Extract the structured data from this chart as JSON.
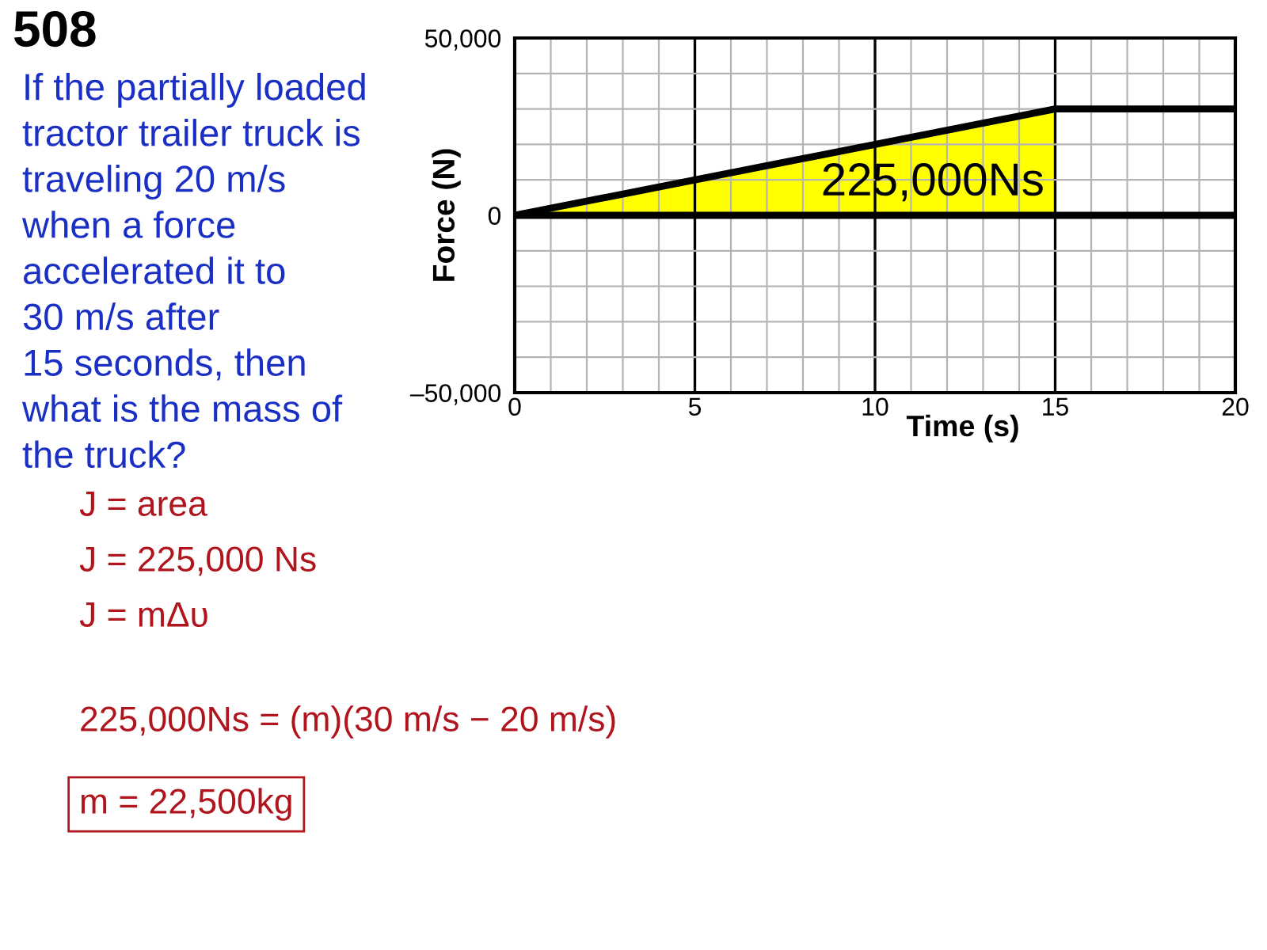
{
  "chart_data": {
    "type": "line",
    "title": "508",
    "xlabel": "Time (s)",
    "ylabel": "Force (N)",
    "xlim": [
      0,
      20
    ],
    "ylim": [
      -50000,
      50000
    ],
    "xticks": [
      0,
      {
        "value": 1,
        "label": null
      },
      {
        "value": 2,
        "label": null
      },
      {
        "value": 3,
        "label": null
      },
      {
        "value": 4,
        "label": null
      },
      5,
      {
        "value": 6,
        "label": null
      },
      {
        "value": 7,
        "label": null
      },
      {
        "value": 8,
        "label": null
      },
      {
        "value": 9,
        "label": null
      },
      10,
      {
        "value": 11,
        "label": null
      },
      {
        "value": 12,
        "label": null
      },
      {
        "value": 13,
        "label": null
      },
      {
        "value": 14,
        "label": null
      },
      15,
      {
        "value": 16,
        "label": null
      },
      {
        "value": 17,
        "label": null
      },
      {
        "value": 18,
        "label": null
      },
      {
        "value": 19,
        "label": null
      },
      20
    ],
    "yticks": [
      {
        "value": -50000,
        "label": "–50,000"
      },
      {
        "value": -40000,
        "label": null
      },
      {
        "value": -30000,
        "label": null
      },
      {
        "value": -20000,
        "label": null
      },
      {
        "value": -10000,
        "label": null
      },
      0,
      {
        "value": 10000,
        "label": null
      },
      {
        "value": 20000,
        "label": null
      },
      {
        "value": 30000,
        "label": null
      },
      {
        "value": 40000,
        "label": null
      },
      {
        "value": 50000,
        "label": "50,000"
      }
    ],
    "grid": true,
    "series": [
      {
        "type": "area",
        "color": "#ffff00",
        "x": [
          0,
          15
        ],
        "values": [
          0,
          30000
        ]
      },
      {
        "color": "#000000",
        "x": [
          0,
          15,
          20
        ],
        "values": [
          0,
          30000,
          30000
        ]
      }
    ],
    "ref_lines": [
      {
        "axis": "y",
        "value": 0,
        "color": "#000000"
      }
    ],
    "annotations": [
      "225,000Ns",
      "If the partially loaded\ntractor trailer truck is\ntraveling 20 m/s\nwhen a force\naccelerated it to\n30 m/s after\n15 seconds, then\nwhat is the mass of\nthe truck?",
      "J = area",
      "J = 225,000 Ns",
      "J = mΔυ",
      "225,000Ns = (m)(30 m/s − 20 m/s)",
      "m = 22,500kg"
    ]
  }
}
